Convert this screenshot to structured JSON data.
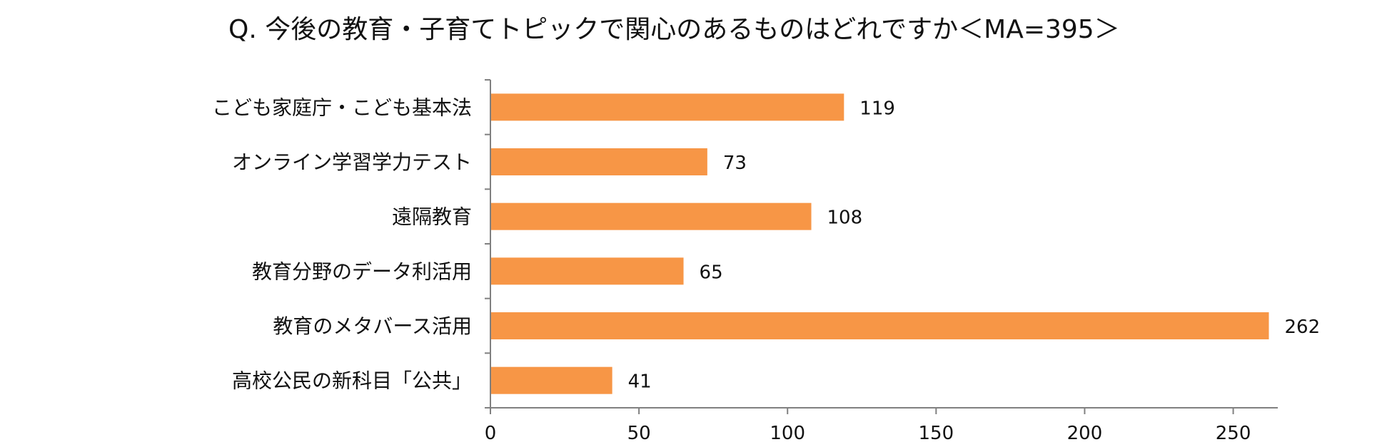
{
  "chart_data": {
    "type": "bar",
    "orientation": "horizontal",
    "title": "Q. 今後の教育・子育てトピックで関心のあるものはどれですか＜MA=395＞",
    "categories": [
      "こども家庭庁・こども基本法",
      "オンライン学習学力テスト",
      "遠隔教育",
      "教育分野のデータ利活用",
      "教育のメタバース活用",
      "高校公民の新科目「公共」"
    ],
    "values": [
      119,
      73,
      108,
      65,
      262,
      41
    ],
    "value_labels": [
      "119",
      "73",
      "108",
      "65",
      "262",
      "41"
    ],
    "xlim": [
      0,
      265
    ],
    "xticks": [
      0,
      50,
      100,
      150,
      200,
      250
    ],
    "xtick_labels": [
      "0",
      "50",
      "100",
      "150",
      "200",
      "250"
    ],
    "xlabel": "",
    "ylabel": "",
    "grid": false,
    "legend": "none",
    "bar_color": "#F79646",
    "axis_color": "#808080"
  }
}
